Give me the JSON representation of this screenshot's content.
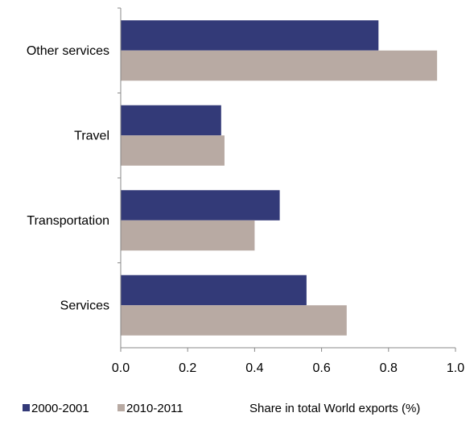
{
  "chart_data": {
    "type": "bar",
    "orientation": "horizontal",
    "categories": [
      "Other services",
      "Travel",
      "Transportation",
      "Services"
    ],
    "series": [
      {
        "name": "2000-2001",
        "color": "#333a78",
        "values": [
          0.77,
          0.3,
          0.475,
          0.555
        ]
      },
      {
        "name": "2010-2011",
        "color": "#b8aaa3",
        "values": [
          0.945,
          0.31,
          0.4,
          0.675
        ]
      }
    ],
    "xlim": [
      0.0,
      1.0
    ],
    "xticks": [
      "0.0",
      "0.2",
      "0.4",
      "0.6",
      "0.8",
      "1.0"
    ],
    "xlabel": "Share in total World exports (%)",
    "legend_position": "bottom-left",
    "grid": false
  }
}
